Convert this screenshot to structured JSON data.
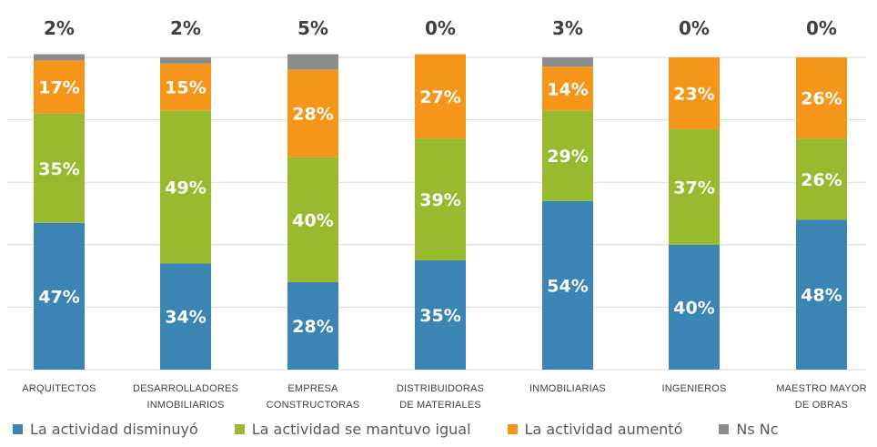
{
  "chart_data": {
    "type": "bar",
    "stacked": true,
    "percent": true,
    "categories": [
      [
        "ARQUITECTOS"
      ],
      [
        "DESARROLLADORES",
        "INMOBILIARIOS"
      ],
      [
        "EMPRESA",
        "CONSTRUCTORAS"
      ],
      [
        "DISTRIBUIDORAS",
        "DE MATERIALES"
      ],
      [
        "INMOBILIARIAS"
      ],
      [
        "INGENIEROS"
      ],
      [
        "MAESTRO MAYOR",
        "DE OBRAS"
      ]
    ],
    "series": [
      {
        "name": "La actividad disminuyó",
        "color": "#3A85B4",
        "values": [
          47,
          34,
          28,
          35,
          54,
          40,
          48
        ]
      },
      {
        "name": "La actividad se mantuvo igual",
        "color": "#97BA2E",
        "values": [
          35,
          49,
          40,
          39,
          29,
          37,
          26
        ]
      },
      {
        "name": "La actividad aumentó",
        "color": "#F5961B",
        "values": [
          17,
          15,
          28,
          27,
          14,
          23,
          26
        ]
      },
      {
        "name": "Ns Nc",
        "color": "#8C8C8C",
        "values": [
          2,
          2,
          5,
          0,
          3,
          0,
          0
        ]
      }
    ],
    "ylim": [
      0,
      100
    ],
    "grid": true,
    "legend": "bottom",
    "title": "",
    "xlabel": "",
    "ylabel": ""
  }
}
